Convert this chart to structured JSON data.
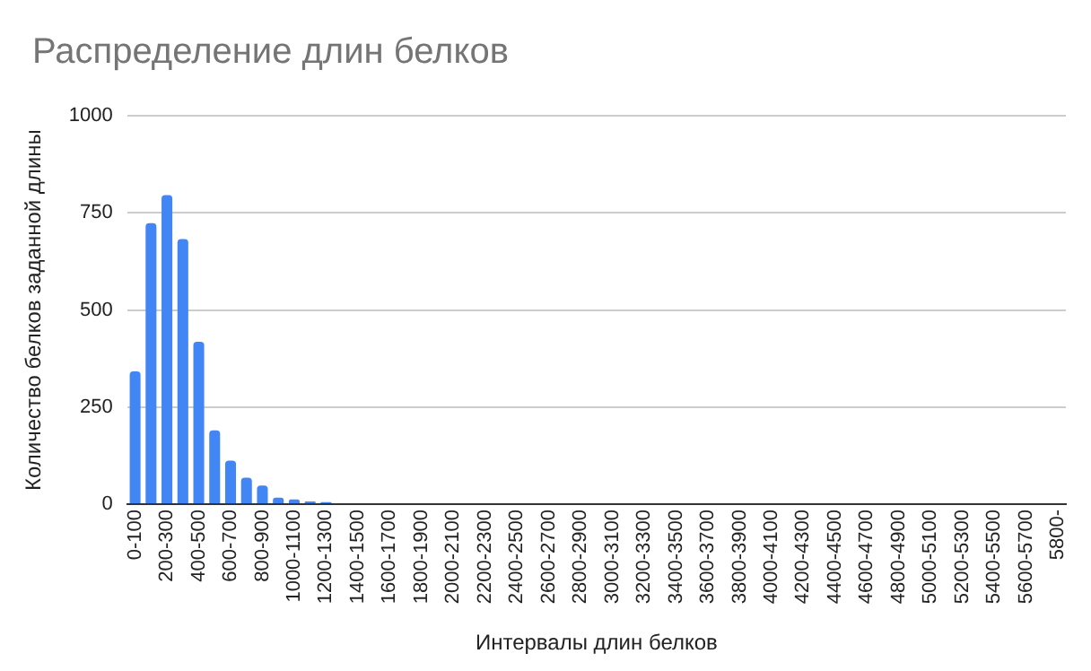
{
  "chart_data": {
    "type": "bar",
    "title": "Распределение длин белков",
    "xlabel": "Интервалы длин белков",
    "ylabel": "Количество белков заданной длины",
    "categories": [
      "0-100",
      null,
      "200-300",
      null,
      "400-500",
      null,
      "600-700",
      null,
      "800-900",
      null,
      "1000-1100",
      null,
      "1200-1300",
      null,
      "1400-1500",
      null,
      "1600-1700",
      null,
      "1800-1900",
      null,
      "2000-2100",
      null,
      "2200-2300",
      null,
      "2400-2500",
      null,
      "2600-2700",
      null,
      "2800-2900",
      null,
      "3000-3100",
      null,
      "3200-3300",
      null,
      "3400-3500",
      null,
      "3600-3700",
      null,
      "3800-3900",
      null,
      "4000-4100",
      null,
      "4200-4300",
      null,
      "4400-4500",
      null,
      "4600-4700",
      null,
      "4800-4900",
      null,
      "5000-5100",
      null,
      "5200-5300",
      null,
      "5400-5500",
      null,
      "5600-5700",
      null,
      "5800-"
    ],
    "values": [
      342,
      724,
      796,
      683,
      418,
      190,
      112,
      68,
      48,
      17,
      12,
      7,
      5,
      0,
      0,
      0,
      0,
      0,
      0,
      0,
      0,
      0,
      0,
      0,
      0,
      0,
      0,
      0,
      0,
      0,
      0,
      0,
      0,
      0,
      0,
      0,
      0,
      0,
      0,
      0,
      0,
      0,
      0,
      0,
      0,
      0,
      0,
      0,
      0,
      0,
      0,
      0,
      0,
      0,
      0,
      0,
      0,
      0,
      0
    ],
    "color": "#4285f4",
    "ylim": [
      0,
      1000
    ],
    "yticks": [
      0,
      250,
      500,
      750,
      1000
    ],
    "grid": "y",
    "legend": false
  }
}
